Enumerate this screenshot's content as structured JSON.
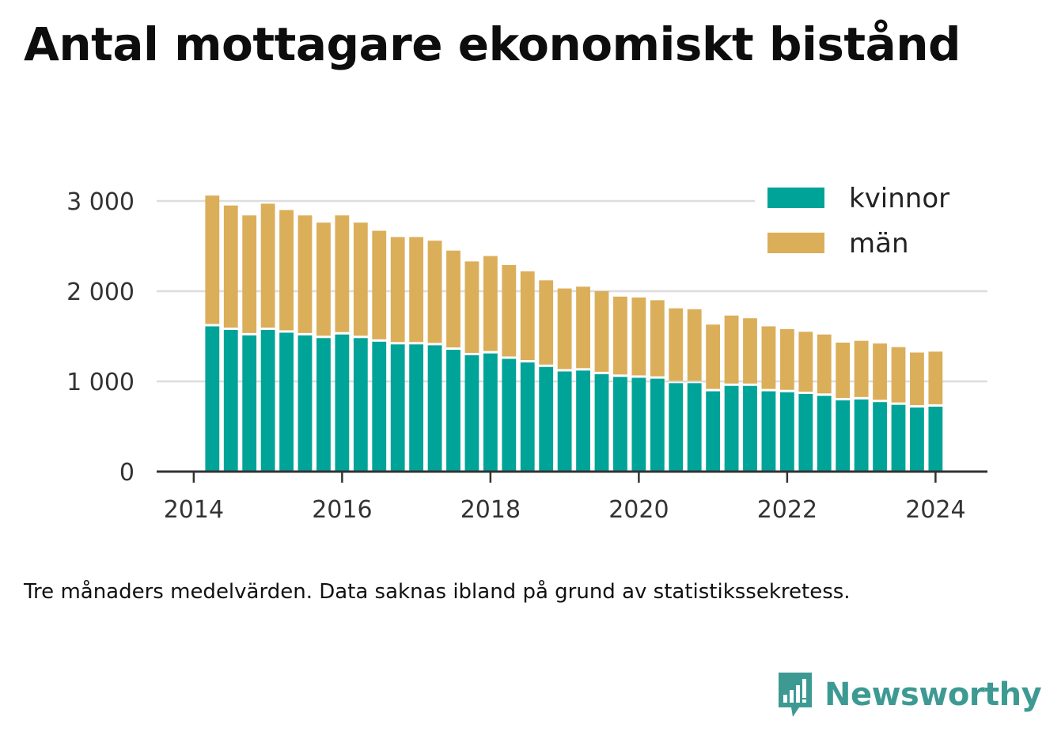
{
  "title": "Antal mottagare ekonomiskt bistånd",
  "note": "Tre månaders medelvärden. Data saknas ibland på grund av statistikssekretess.",
  "brand": "Newsworthy",
  "colors": {
    "kvinnor": "#00a398",
    "man": "#dbae5a",
    "grid": "#dddddd",
    "axis": "#333333",
    "brand": "#3d9a93"
  },
  "icons": {
    "brand_logo": "newsworthy-bar-chart-speech-bubble-icon"
  },
  "chart_data": {
    "type": "bar",
    "stacked": true,
    "title": "Antal mottagare ekonomiskt bistånd",
    "xlabel": "",
    "ylabel": "",
    "ylim": [
      0,
      3000
    ],
    "yticks": [
      {
        "value": 0,
        "label": "0"
      },
      {
        "value": 1000,
        "label": "1 000"
      },
      {
        "value": 2000,
        "label": "2 000"
      },
      {
        "value": 3000,
        "label": "3 000"
      }
    ],
    "xticks": [
      {
        "value": 2014,
        "label": "2014"
      },
      {
        "value": 2016,
        "label": "2016"
      },
      {
        "value": 2018,
        "label": "2018"
      },
      {
        "value": 2020,
        "label": "2020"
      },
      {
        "value": 2022,
        "label": "2022"
      },
      {
        "value": 2024,
        "label": "2024"
      }
    ],
    "xlim": [
      2013.5,
      2024.7
    ],
    "grid": true,
    "legend_position": "top-right",
    "x": [
      2014.25,
      2014.5,
      2014.75,
      2015.0,
      2015.25,
      2015.5,
      2015.75,
      2016.0,
      2016.25,
      2016.5,
      2016.75,
      2017.0,
      2017.25,
      2017.5,
      2017.75,
      2018.0,
      2018.25,
      2018.5,
      2018.75,
      2019.0,
      2019.25,
      2019.5,
      2019.75,
      2020.0,
      2020.25,
      2020.5,
      2020.75,
      2021.0,
      2021.25,
      2021.5,
      2021.75,
      2022.0,
      2022.25,
      2022.5,
      2022.75,
      2023.0,
      2023.25,
      2023.5,
      2023.75,
      2024.0
    ],
    "series": [
      {
        "name": "kvinnor",
        "values": [
          1610,
          1570,
          1510,
          1570,
          1540,
          1510,
          1480,
          1520,
          1480,
          1440,
          1410,
          1410,
          1400,
          1350,
          1290,
          1310,
          1250,
          1210,
          1160,
          1110,
          1120,
          1080,
          1050,
          1040,
          1030,
          980,
          980,
          890,
          950,
          950,
          890,
          880,
          860,
          840,
          790,
          800,
          770,
          740,
          710,
          720
        ]
      },
      {
        "name": "män",
        "values": [
          1450,
          1380,
          1330,
          1400,
          1360,
          1330,
          1280,
          1320,
          1280,
          1230,
          1190,
          1190,
          1160,
          1100,
          1040,
          1080,
          1040,
          1010,
          960,
          920,
          930,
          920,
          890,
          890,
          870,
          830,
          820,
          740,
          780,
          750,
          720,
          700,
          690,
          680,
          640,
          650,
          650,
          640,
          610,
          610
        ]
      }
    ]
  }
}
